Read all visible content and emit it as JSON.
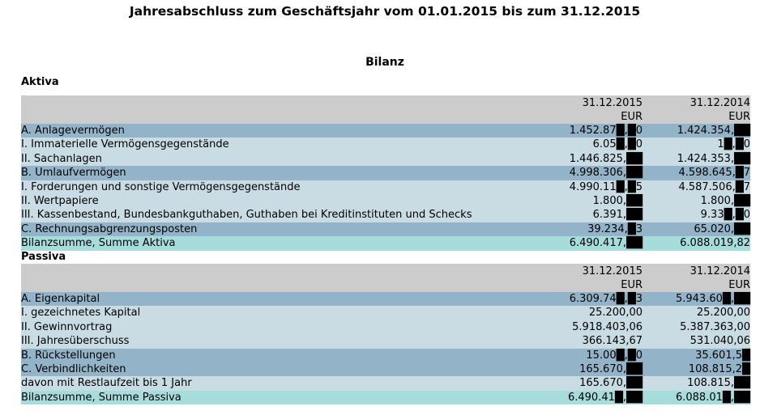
{
  "document": {
    "title": "Jahresabschluss zum Geschäftsjahr vom 01.01.2015 bis zum 31.12.2015",
    "subtitle": "Bilanz"
  },
  "aktiva": {
    "label": "Aktiva",
    "columns": [
      "",
      "31.12.2015",
      "31.12.2014"
    ],
    "currency": "EUR",
    "rows": [
      {
        "label": "A. Anlagevermögen",
        "level": "lvl1",
        "v2015": "1.452.87█,█0",
        "v2014": "1.424.354,██"
      },
      {
        "label": "I. Immaterielle Vermögensgegenstände",
        "level": "lvl2",
        "v2015": "6.05█,█0",
        "v2014": "1█,█0"
      },
      {
        "label": "II. Sachanlagen",
        "level": "lvl2",
        "v2015": "1.446.825,██",
        "v2014": "1.424.353,██"
      },
      {
        "label": "B. Umlaufvermögen",
        "level": "lvl1",
        "v2015": "4.998.306,██",
        "v2014": "4.598.645,█7"
      },
      {
        "label": "I. Forderungen und sonstige Vermögensgegenstände",
        "level": "lvl2",
        "v2015": "4.990.11█,█5",
        "v2014": "4.587.506,█7"
      },
      {
        "label": "II. Wertpapiere",
        "level": "lvl2",
        "v2015": "1.800,██",
        "v2014": "1.800,██"
      },
      {
        "label": "III. Kassenbestand, Bundesbankguthaben, Guthaben bei Kreditinstituten und Schecks",
        "level": "lvl2",
        "v2015": "6.391,██",
        "v2014": "9.33█,█0"
      },
      {
        "label": "C. Rechnungsabgrenzungsposten",
        "level": "lvl1",
        "v2015": "39.234,█3",
        "v2014": "65.020,██"
      },
      {
        "label": "Bilanzsumme, Summe Aktiva",
        "level": "sum",
        "v2015": "6.490.417,██",
        "v2014": "6.088.019,82"
      }
    ]
  },
  "passiva": {
    "label": "Passiva",
    "columns": [
      "",
      "31.12.2015",
      "31.12.2014"
    ],
    "currency": "EUR",
    "rows": [
      {
        "label": "A. Eigenkapital",
        "level": "lvl1",
        "v2015": "6.309.74█,█3",
        "v2014": "5.943.60█,██"
      },
      {
        "label": "I. gezeichnetes Kapital",
        "level": "lvl2",
        "v2015": "25.200,00",
        "v2014": "25.200,00"
      },
      {
        "label": "II. Gewinnvortrag",
        "level": "lvl2",
        "v2015": "5.918.403,06",
        "v2014": "5.387.363,00"
      },
      {
        "label": "III. Jahresüberschuss",
        "level": "lvl2",
        "v2015": "366.143,67",
        "v2014": "531.040,06"
      },
      {
        "label": "B. Rückstellungen",
        "level": "lvl1",
        "v2015": "15.00█,█0",
        "v2014": "35.601,5█"
      },
      {
        "label": "C. Verbindlichkeiten",
        "level": "lvl1",
        "v2015": "165.670,██",
        "v2014": "108.815,2█"
      },
      {
        "label": "davon mit Restlaufzeit bis 1 Jahr",
        "level": "lvl2",
        "v2015": "165.670,██",
        "v2014": "108.815,██"
      },
      {
        "label": "Bilanzsumme, Summe Passiva",
        "level": "sum",
        "v2015": "6.490.41█,██",
        "v2014": "6.088.01█,██"
      }
    ]
  }
}
